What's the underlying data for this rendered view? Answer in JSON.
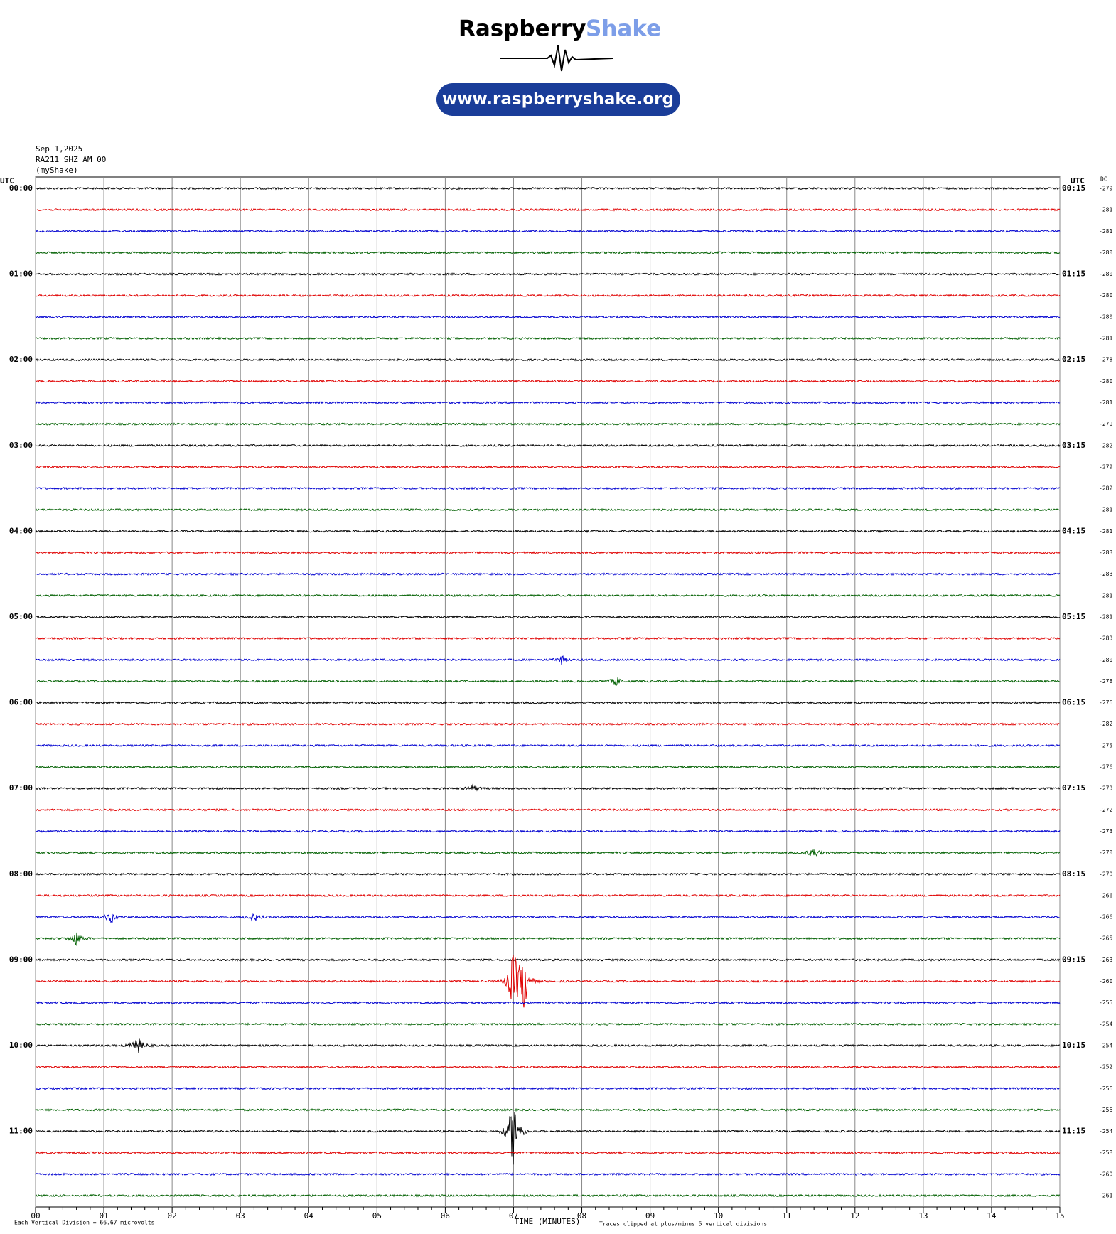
{
  "logo": {
    "word1": "Raspberry",
    "word2": "Shake",
    "url": "www.raspberryshake.org"
  },
  "station": {
    "date": "Sep 1,2025",
    "channel": "RA211 SHZ AM 00",
    "source": "(myShake)"
  },
  "helicorder": {
    "left_header": "UTC",
    "right_header": "UTC",
    "dc_header": "DC",
    "left_times": [
      "00:00",
      "01:00",
      "02:00",
      "03:00",
      "04:00",
      "05:00",
      "06:00",
      "07:00",
      "08:00",
      "09:00",
      "10:00",
      "11:00"
    ],
    "right_times": [
      "00:15",
      "01:15",
      "02:15",
      "03:15",
      "04:15",
      "05:15",
      "06:15",
      "07:15",
      "08:15",
      "09:15",
      "10:15",
      "11:15"
    ],
    "dc_values": [
      -279,
      -281,
      -281,
      -280,
      -280,
      -280,
      -280,
      -281,
      -278,
      -280,
      -281,
      -279,
      -282,
      -279,
      -282,
      -281,
      -281,
      -283,
      -283,
      -281,
      -281,
      -283,
      -280,
      -278,
      -276,
      -282,
      -275,
      -276,
      -273,
      -272,
      -273,
      -270,
      -270,
      -266,
      -266,
      -265,
      -263,
      -260,
      -255,
      -254,
      -254,
      -252,
      -256,
      -256,
      -254,
      -258,
      -260,
      -261
    ],
    "trace_colors": [
      "#000000",
      "#e00000",
      "#0000d0",
      "#006000"
    ],
    "xlim": [
      0,
      15
    ],
    "xticks": [
      {
        "value": 0,
        "label": "00"
      },
      {
        "value": 1,
        "label": "01"
      },
      {
        "value": 2,
        "label": "02"
      },
      {
        "value": 3,
        "label": "03"
      },
      {
        "value": 4,
        "label": "04"
      },
      {
        "value": 5,
        "label": "05"
      },
      {
        "value": 6,
        "label": "06"
      },
      {
        "value": 7,
        "label": "07"
      },
      {
        "value": 8,
        "label": "08"
      },
      {
        "value": 9,
        "label": "09"
      },
      {
        "value": 10,
        "label": "10"
      },
      {
        "value": 11,
        "label": "11"
      },
      {
        "value": 12,
        "label": "12"
      },
      {
        "value": 13,
        "label": "13"
      },
      {
        "value": 14,
        "label": "14"
      },
      {
        "value": 15,
        "label": "15"
      }
    ],
    "xlabel": "TIME (MINUTES)",
    "division_note": "Each Vertical Division =   66.67 microvolts",
    "clip_note": "Traces clipped at plus/minus 5 vertical divisions"
  }
}
